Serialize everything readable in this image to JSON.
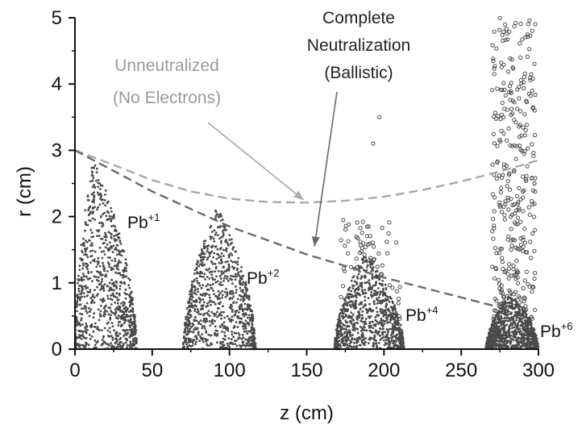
{
  "chart_data": {
    "type": "scatter",
    "xlabel": "z (cm)",
    "ylabel": "r (cm)",
    "xlim": [
      0,
      300
    ],
    "ylim": [
      0,
      5
    ],
    "xticks": [
      0,
      50,
      100,
      150,
      200,
      250,
      300
    ],
    "yticks": [
      0,
      1,
      2,
      3,
      4,
      5
    ],
    "grid": false,
    "colors": {
      "particles": "#4a4a4a",
      "unneutralized_curve": "#a8a8a8",
      "neutralized_curve": "#6a6a6a",
      "axis": "#111111"
    },
    "curves": [
      {
        "label": "Unneutralized (No Electrons)",
        "style": "dashed",
        "points": [
          [
            0,
            3.0
          ],
          [
            25,
            2.78
          ],
          [
            50,
            2.55
          ],
          [
            75,
            2.38
          ],
          [
            100,
            2.27
          ],
          [
            125,
            2.22
          ],
          [
            150,
            2.21
          ],
          [
            175,
            2.24
          ],
          [
            200,
            2.3
          ],
          [
            225,
            2.4
          ],
          [
            250,
            2.53
          ],
          [
            275,
            2.68
          ],
          [
            300,
            2.85
          ]
        ]
      },
      {
        "label": "Complete Neutralization (Ballistic)",
        "style": "dashed",
        "points": [
          [
            0,
            3.0
          ],
          [
            50,
            2.38
          ],
          [
            100,
            1.85
          ],
          [
            150,
            1.43
          ],
          [
            200,
            1.08
          ],
          [
            250,
            0.78
          ],
          [
            275,
            0.63
          ]
        ]
      }
    ],
    "bunches": [
      {
        "label": "Pb+1",
        "charge": "+1",
        "z_range": [
          0,
          40
        ],
        "z_peak": 12,
        "r_max": 2.9
      },
      {
        "label": "Pb+2",
        "charge": "+2",
        "z_range": [
          70,
          117
        ],
        "z_peak": 92,
        "r_max": 2.15
      },
      {
        "label": "Pb+4",
        "charge": "+4",
        "z_range": [
          168,
          213
        ],
        "z_peak": 188,
        "r_max": 1.45,
        "halo_r_max": 1.95,
        "outliers": [
          [
            197,
            3.5
          ],
          [
            193,
            3.1
          ],
          [
            190,
            1.85
          ]
        ]
      },
      {
        "label": "Pb+6",
        "charge": "+6",
        "z_range": [
          266,
          300
        ],
        "z_peak": 282,
        "r_max": 0.85,
        "halo_r_max": 5.0
      }
    ],
    "annotations": [
      {
        "text_lines": [
          "Unneutralized",
          "(No Electrons)"
        ],
        "arrow_to": [
          148,
          2.25
        ]
      },
      {
        "text_lines": [
          "Complete",
          "Neutralization",
          "(Ballistic)"
        ],
        "arrow_to": [
          155,
          1.55
        ]
      }
    ]
  }
}
